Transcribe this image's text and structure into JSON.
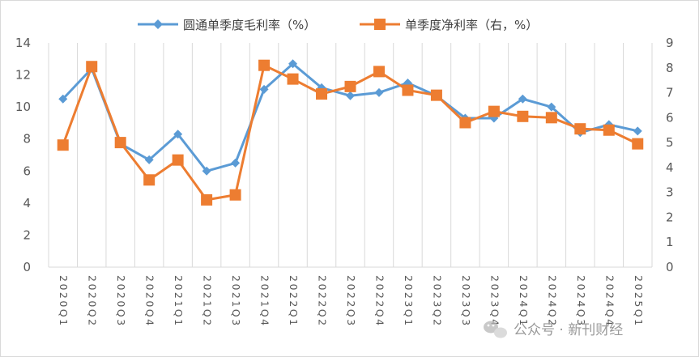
{
  "chart_data": {
    "type": "line",
    "categories": [
      "2020Q1",
      "2020Q2",
      "2020Q3",
      "2020Q4",
      "2021Q1",
      "2021Q2",
      "2021Q3",
      "2021Q4",
      "2022Q1",
      "2022Q2",
      "2022Q3",
      "2022Q4",
      "2023Q1",
      "2023Q2",
      "2023Q3",
      "2023Q4",
      "2024Q1",
      "2024Q2",
      "2024Q3",
      "2024Q4",
      "2025Q1"
    ],
    "series": [
      {
        "name": "圆通单季度毛利率（%）",
        "axis": "left",
        "marker": "diamond",
        "color": "#5b9bd5",
        "values": [
          10.5,
          12.4,
          7.7,
          6.7,
          8.3,
          6.0,
          6.5,
          11.1,
          12.7,
          11.2,
          10.7,
          10.9,
          11.5,
          10.7,
          9.3,
          9.3,
          10.5,
          10.0,
          8.4,
          8.9,
          8.5
        ]
      },
      {
        "name": "单季度净利率（右，%）",
        "axis": "right",
        "marker": "square",
        "color": "#ed7d31",
        "values": [
          4.9,
          8.05,
          5.0,
          3.5,
          4.3,
          2.7,
          2.9,
          8.1,
          7.55,
          6.95,
          7.25,
          7.85,
          7.1,
          6.9,
          5.8,
          6.25,
          6.05,
          6.0,
          5.55,
          5.5,
          4.95
        ]
      }
    ],
    "y_left": {
      "min": 0,
      "max": 14,
      "ticks": [
        "0",
        "2",
        "4",
        "6",
        "8",
        "10",
        "12",
        "14"
      ]
    },
    "y_right": {
      "min": 0,
      "max": 9,
      "ticks": [
        "0",
        "1",
        "2",
        "3",
        "4",
        "5",
        "6",
        "7",
        "8",
        "9"
      ]
    },
    "grid": "vertical",
    "legend_position": "top"
  },
  "watermark": {
    "text": "公众号 · 新刊财经"
  }
}
